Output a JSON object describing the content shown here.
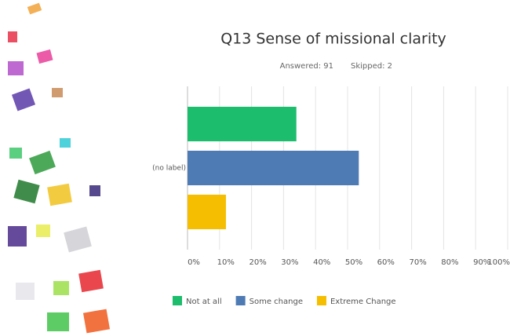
{
  "chart_data": {
    "type": "hbar",
    "title": "Q13 Sense of missional clarity",
    "answered": "Answered: 91",
    "skipped": "Skipped: 2",
    "categories": [
      "(no label)"
    ],
    "series": [
      {
        "name": "Not at all",
        "color": "#1dbd6e",
        "values": [
          34
        ]
      },
      {
        "name": "Some change",
        "color": "#4f7bb5",
        "values": [
          53.5
        ]
      },
      {
        "name": "Extreme Change",
        "color": "#f5be00",
        "values": [
          12
        ]
      }
    ],
    "xlim": [
      0,
      100
    ],
    "xticks": [
      {
        "value": 0,
        "label": "0%"
      },
      {
        "value": 10,
        "label": "10%"
      },
      {
        "value": 20,
        "label": "20%"
      },
      {
        "value": 30,
        "label": "30%"
      },
      {
        "value": 40,
        "label": "40%"
      },
      {
        "value": 50,
        "label": "50%"
      },
      {
        "value": 60,
        "label": "60%"
      },
      {
        "value": 70,
        "label": "70%"
      },
      {
        "value": 80,
        "label": "80%"
      },
      {
        "value": 90,
        "label": "90%"
      },
      {
        "value": 100,
        "label": "100%"
      }
    ],
    "grid": true
  }
}
